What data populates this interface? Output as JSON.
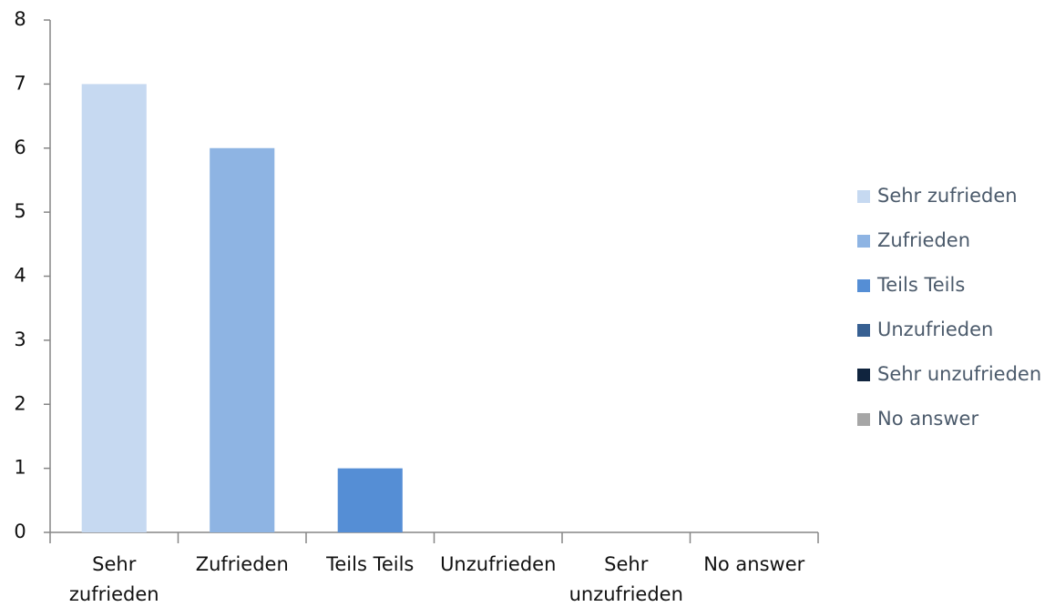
{
  "chart_data": {
    "type": "bar",
    "categories": [
      "Sehr zufrieden",
      "Zufrieden",
      "Teils Teils",
      "Unzufrieden",
      "Sehr unzufrieden",
      "No answer"
    ],
    "values": [
      7,
      6,
      1,
      0,
      0,
      0
    ],
    "colors": [
      "#c6d9f1",
      "#8eb4e3",
      "#558ed5",
      "#376092",
      "#10243e",
      "#a6a6a6"
    ],
    "ylim": [
      0,
      8
    ],
    "yticks": [
      0,
      1,
      2,
      3,
      4,
      5,
      6,
      7,
      8
    ],
    "grid": false,
    "legend": "right"
  }
}
